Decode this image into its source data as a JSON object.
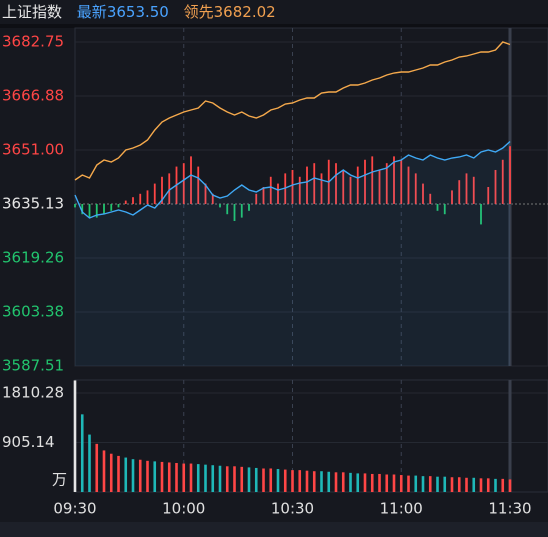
{
  "header": {
    "name": "上证指数",
    "latest_label": "最新",
    "latest": "3653.50",
    "lead_label": "领先",
    "lead": "3682.02"
  },
  "chart_data": [
    {
      "type": "line",
      "xlim": [
        0,
        120
      ],
      "ylim": [
        3587.51,
        3682.75
      ],
      "base": 3635.13,
      "yticks": [
        3587.51,
        3603.38,
        3619.26,
        3635.13,
        {
          "value": 3651,
          "label": "3651.00"
        },
        3666.88,
        3682.75
      ],
      "up_color": "#ff4646",
      "down_color": "#22c46e",
      "base_color": "#e6e6e6",
      "x": [
        0,
        2,
        4,
        6,
        8,
        10,
        12,
        14,
        16,
        18,
        20,
        22,
        24,
        26,
        28,
        30,
        32,
        34,
        36,
        38,
        40,
        42,
        44,
        46,
        48,
        50,
        52,
        54,
        56,
        58,
        60,
        62,
        64,
        66,
        68,
        70,
        72,
        74,
        76,
        78,
        80,
        82,
        84,
        86,
        88,
        90,
        92,
        94,
        96,
        98,
        100,
        102,
        104,
        106,
        108,
        110,
        112,
        114,
        116,
        118,
        120
      ],
      "series": [
        {
          "name": "最新",
          "color": "#3fa9f5",
          "area": true,
          "values": [
            3637.78,
            3632.79,
            3631.02,
            3631.91,
            3632.2,
            3632.79,
            3633.37,
            3632.79,
            3631.91,
            3633.37,
            3634.84,
            3633.96,
            3636.31,
            3639.25,
            3640.72,
            3642.19,
            3643.66,
            3642.78,
            3640.72,
            3637.78,
            3636.9,
            3637.49,
            3639.25,
            3640.72,
            3639.25,
            3638.66,
            3639.84,
            3640.13,
            3639.25,
            3639.84,
            3640.72,
            3641.31,
            3641.6,
            3642.78,
            3642.19,
            3641.6,
            3643.66,
            3645.13,
            3643.66,
            3642.78,
            3643.66,
            3644.54,
            3645.13,
            3645.72,
            3647.48,
            3648.07,
            3649.54,
            3648.66,
            3648.07,
            3649.54,
            3648.66,
            3648.07,
            3648.66,
            3648.95,
            3649.54,
            3648.66,
            3650.42,
            3651.01,
            3650.42,
            3651.6,
            3653.5
          ]
        },
        {
          "name": "领先",
          "color": "#f5a94c",
          "values": [
            3642.19,
            3643.66,
            3642.78,
            3646.6,
            3648.07,
            3647.48,
            3648.66,
            3651.01,
            3651.6,
            3652.48,
            3653.95,
            3656.89,
            3659.24,
            3660.41,
            3661.3,
            3662.18,
            3662.76,
            3663.35,
            3665.41,
            3664.82,
            3663.35,
            3662.18,
            3661.3,
            3662.18,
            3661.0,
            3660.41,
            3661.3,
            3662.76,
            3663.35,
            3664.53,
            3664.82,
            3665.7,
            3666.29,
            3666.29,
            3667.76,
            3668.05,
            3668.05,
            3669.23,
            3670.11,
            3670.11,
            3670.7,
            3671.58,
            3672.17,
            3673.05,
            3673.64,
            3673.93,
            3673.93,
            3674.52,
            3675.11,
            3675.99,
            3675.99,
            3676.87,
            3677.46,
            3678.34,
            3678.64,
            3679.22,
            3679.81,
            3679.81,
            3680.4,
            3682.75,
            3682.02
          ]
        }
      ],
      "bars": {
        "values": [
          -1,
          -3,
          -4,
          -4,
          -3,
          -2,
          -1,
          1,
          2,
          3,
          4,
          6,
          8,
          9,
          11,
          12,
          14,
          11,
          6,
          3,
          -1,
          -3,
          -5,
          -4,
          -2,
          3,
          5,
          8,
          6,
          9,
          10,
          8,
          11,
          12,
          9,
          13,
          12,
          10,
          8,
          11,
          13,
          14,
          10,
          12,
          14,
          13,
          11,
          9,
          6,
          3,
          -2,
          -3,
          4,
          7,
          9,
          8,
          -6,
          5,
          10,
          13,
          17
        ]
      }
    },
    {
      "type": "bar",
      "unit": "万",
      "xlim": [
        0,
        120
      ],
      "ylim": [
        0,
        2048
      ],
      "yticks": [
        905.14,
        1810.28
      ],
      "xticks": [
        {
          "value": 0,
          "label": "09:30"
        },
        {
          "value": 30,
          "label": "10:00"
        },
        {
          "value": 60,
          "label": "10:30"
        },
        {
          "value": 90,
          "label": "11:00"
        },
        {
          "value": 120,
          "label": "11:30"
        }
      ],
      "up_color": "#ff4646",
      "down_color": "#1fb8b8",
      "first_color": "#e6e6e6",
      "x": [
        0,
        2,
        4,
        6,
        8,
        10,
        12,
        14,
        16,
        18,
        20,
        22,
        24,
        26,
        28,
        30,
        32,
        34,
        36,
        38,
        40,
        42,
        44,
        46,
        48,
        50,
        52,
        54,
        56,
        58,
        60,
        62,
        64,
        66,
        68,
        70,
        72,
        74,
        76,
        78,
        80,
        82,
        84,
        86,
        88,
        90,
        92,
        94,
        96,
        98,
        100,
        102,
        104,
        106,
        108,
        110,
        112,
        114,
        116,
        118,
        120
      ],
      "values": [
        2040,
        1420,
        1050,
        880,
        760,
        700,
        660,
        630,
        600,
        590,
        570,
        560,
        550,
        540,
        530,
        520,
        520,
        510,
        500,
        490,
        480,
        470,
        470,
        460,
        450,
        440,
        430,
        430,
        420,
        410,
        400,
        400,
        390,
        380,
        380,
        370,
        360,
        360,
        350,
        340,
        340,
        330,
        330,
        320,
        320,
        310,
        300,
        300,
        290,
        290,
        280,
        280,
        270,
        270,
        260,
        260,
        250,
        250,
        240,
        240,
        230
      ]
    }
  ]
}
